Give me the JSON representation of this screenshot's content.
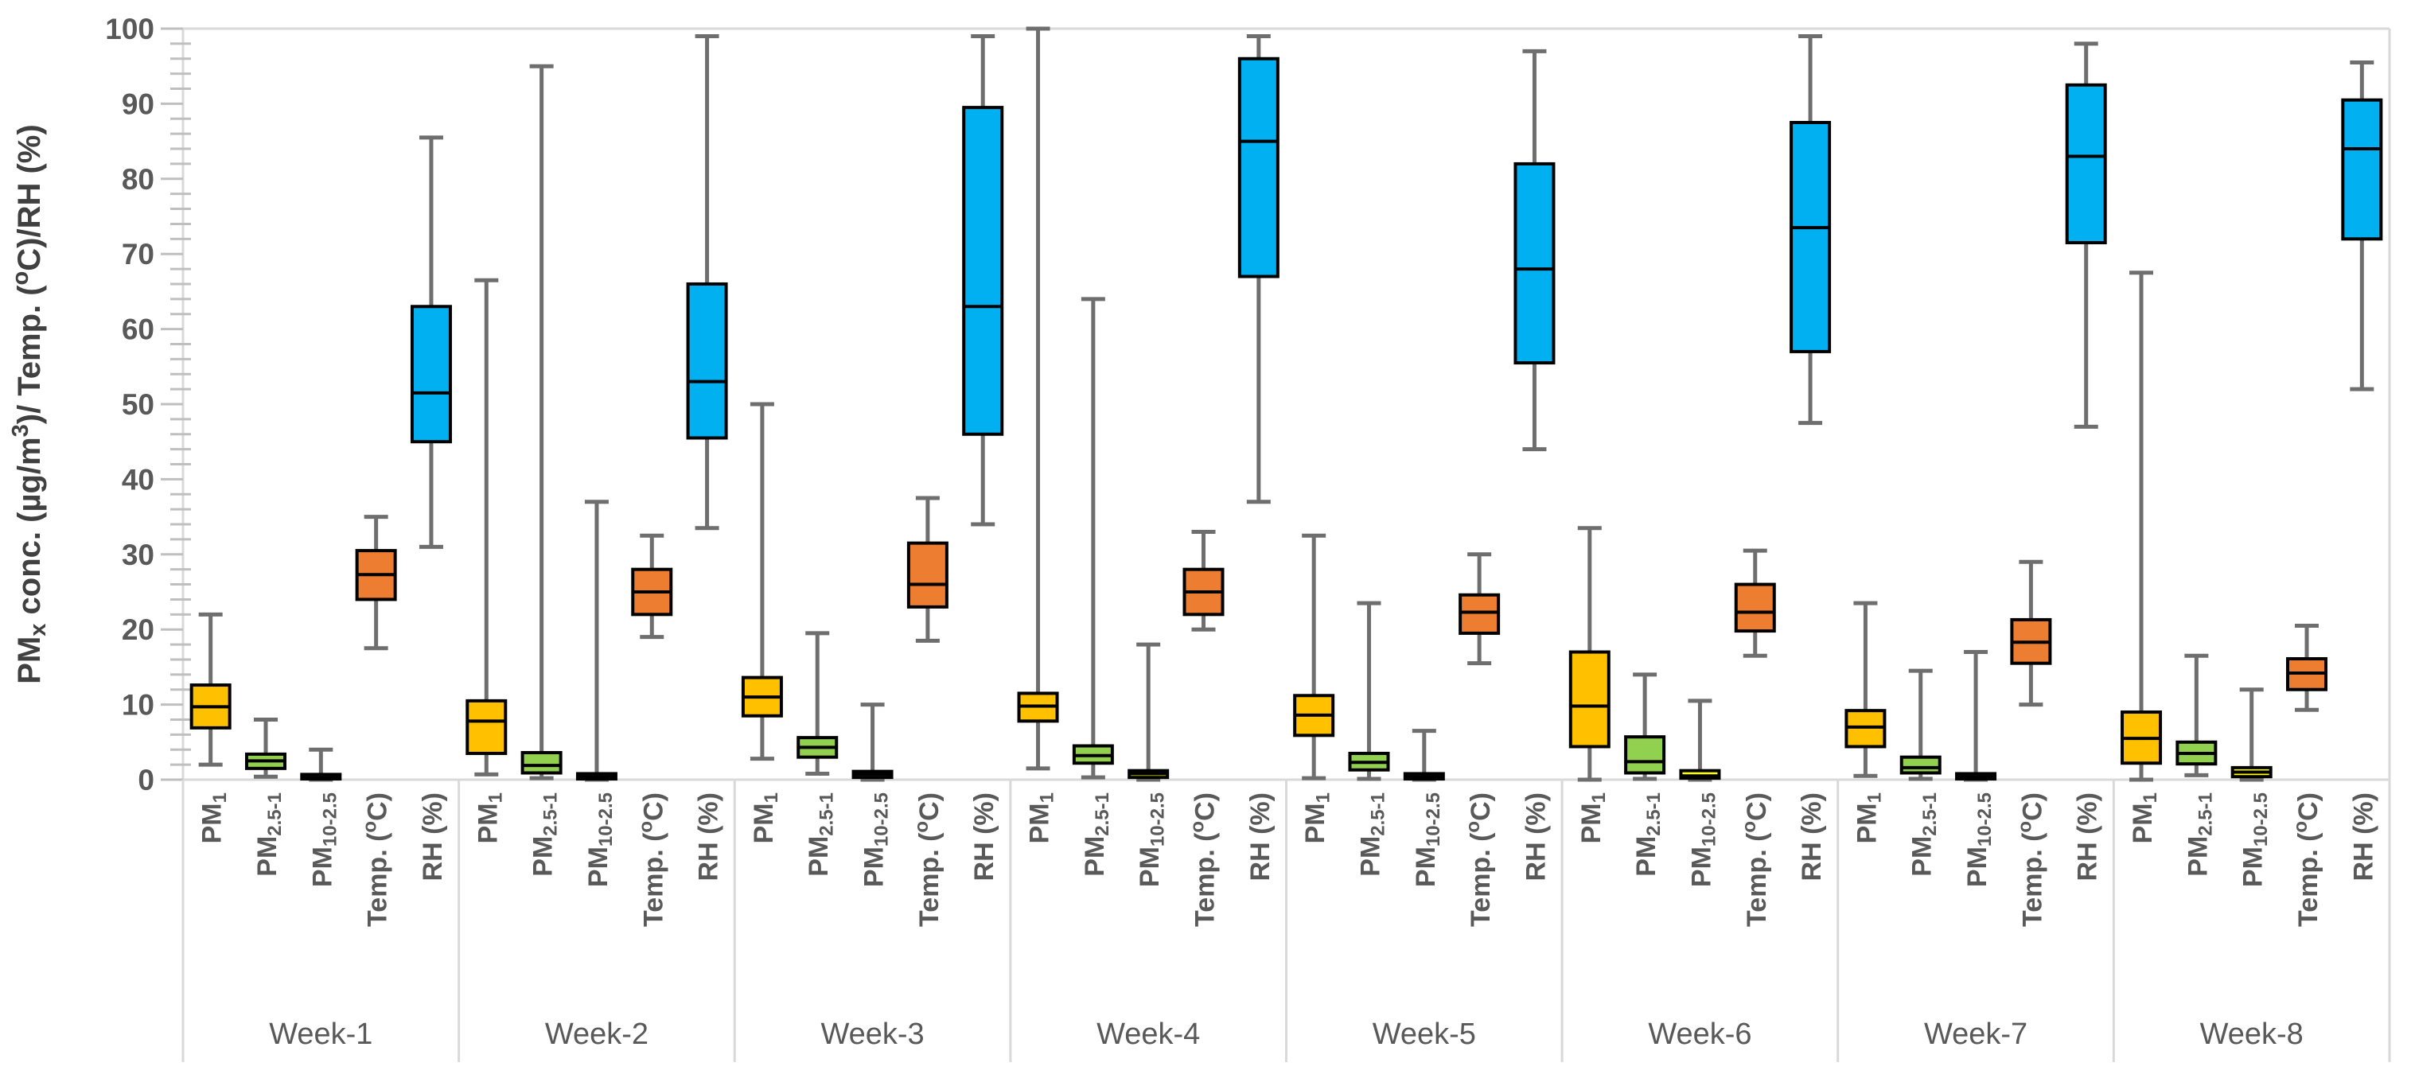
{
  "chart_data": {
    "type": "box",
    "title": "",
    "ylabel_rich": "PM_{x} conc. (µg/m^{3})/ Temp. (^{o}C)/RH (%)",
    "ylabel_plain": "PMx conc. (µg/m3)/ Temp. (oC)/RH (%)",
    "ylim": [
      0,
      100
    ],
    "ytick_step": 10,
    "ytick_minor_step": 2,
    "ytick_labels": [
      "0",
      "10",
      "20",
      "30",
      "40",
      "50",
      "60",
      "70",
      "80",
      "90",
      "100"
    ],
    "grid": "off",
    "legend": "none",
    "box_stats_order": [
      "min",
      "q1",
      "median",
      "q3",
      "max"
    ],
    "groups": [
      "Week-1",
      "Week-2",
      "Week-3",
      "Week-4",
      "Week-5",
      "Week-6",
      "Week-7",
      "Week-8"
    ],
    "series": [
      {
        "key": "pm1",
        "label_rich": "PM_{1}",
        "label_plain": "PM1",
        "color": "#FFC000",
        "boxes": [
          [
            2,
            6.9,
            9.7,
            12.6,
            22
          ],
          [
            0.7,
            3.5,
            7.8,
            10.5,
            66.5
          ],
          [
            2.8,
            8.5,
            11,
            13.6,
            50
          ],
          [
            1.5,
            7.8,
            9.8,
            11.5,
            100
          ],
          [
            0.2,
            5.9,
            8.6,
            11.2,
            32.5
          ],
          [
            0,
            4.4,
            9.8,
            17,
            33.5
          ],
          [
            0.5,
            4.4,
            7,
            9.2,
            23.5
          ],
          [
            0,
            2.2,
            5.5,
            9,
            67.5
          ]
        ]
      },
      {
        "key": "pm2_5_1",
        "label_rich": "PM_{2.5-1}",
        "label_plain": "PM2.5-1",
        "color": "#92D050",
        "boxes": [
          [
            0.4,
            1.5,
            2.5,
            3.4,
            8
          ],
          [
            0.2,
            0.9,
            1.9,
            3.6,
            95
          ],
          [
            0.8,
            3,
            4.3,
            5.6,
            19.5
          ],
          [
            0.3,
            2.2,
            3.2,
            4.5,
            64
          ],
          [
            0.1,
            1.3,
            2.3,
            3.5,
            23.5
          ],
          [
            0.1,
            0.9,
            2.4,
            5.7,
            14
          ],
          [
            0.1,
            0.9,
            1.6,
            3,
            14.5
          ],
          [
            0.6,
            2.1,
            3.5,
            5,
            16.5
          ]
        ]
      },
      {
        "key": "pm10_2_5",
        "label_rich": "PM_{10-2.5}",
        "label_plain": "PM10-2.5",
        "color": "#FFFF00",
        "boxes": [
          [
            0,
            0.1,
            0.3,
            0.7,
            4
          ],
          [
            0,
            0.1,
            0.4,
            0.8,
            37
          ],
          [
            0,
            0.3,
            0.7,
            1.1,
            10
          ],
          [
            0,
            0.3,
            0.8,
            1.2,
            18
          ],
          [
            0,
            0.1,
            0.4,
            0.8,
            6.5
          ],
          [
            0,
            0.2,
            0.5,
            1.2,
            10.5
          ],
          [
            0,
            0.1,
            0.4,
            0.8,
            17
          ],
          [
            0,
            0.4,
            1,
            1.6,
            12
          ]
        ]
      },
      {
        "key": "temp",
        "label_rich": "Temp. (^{o}C)",
        "label_plain": "Temp. (oC)",
        "color": "#ED7D31",
        "boxes": [
          [
            17.5,
            24,
            27.3,
            30.5,
            35
          ],
          [
            19,
            22,
            25,
            28,
            32.5
          ],
          [
            18.5,
            23,
            26,
            31.5,
            37.5
          ],
          [
            20,
            22,
            25,
            28,
            33
          ],
          [
            15.5,
            19.5,
            22.3,
            24.6,
            30
          ],
          [
            16.5,
            19.8,
            22.3,
            26,
            30.5
          ],
          [
            10,
            15.5,
            18.3,
            21.3,
            29
          ],
          [
            9.3,
            12,
            14.2,
            16.1,
            20.5
          ]
        ]
      },
      {
        "key": "rh",
        "label_rich": "RH (%)",
        "label_plain": "RH (%)",
        "color": "#00B0F0",
        "boxes": [
          [
            31,
            45,
            51.5,
            63,
            85.5
          ],
          [
            33.5,
            45.5,
            53,
            66,
            99
          ],
          [
            34,
            46,
            63,
            89.5,
            99
          ],
          [
            37,
            67,
            85,
            96,
            99
          ],
          [
            44,
            55.5,
            68,
            82,
            97
          ],
          [
            47.5,
            57,
            73.5,
            87.5,
            99
          ],
          [
            47,
            71.5,
            83,
            92.5,
            98
          ],
          [
            52,
            72,
            84,
            90.5,
            95.5
          ]
        ]
      }
    ],
    "colors": {
      "box_border": "#000000",
      "median_line": "#000000",
      "whisker": "#6E6E6E",
      "axis_line": "#D9D9D9",
      "tick_line": "#BFBFBF",
      "separator_line": "#D9D9D9",
      "tick_label_text": "#595959",
      "category_label_text": "#595959",
      "week_label_text": "#595959",
      "y_title_text": "#404040",
      "background": "#FFFFFF"
    }
  }
}
